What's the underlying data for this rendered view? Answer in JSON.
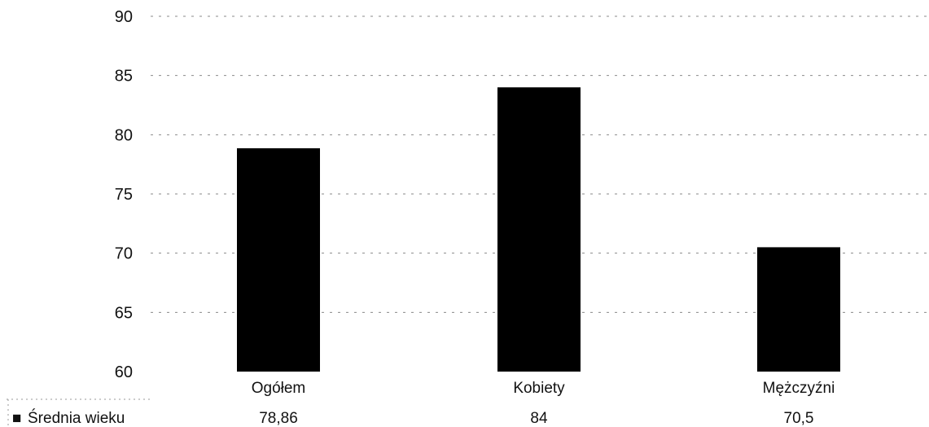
{
  "chart_data": {
    "type": "bar",
    "title": "",
    "xlabel": "",
    "ylabel": "",
    "categories": [
      "Ogółem",
      "Kobiety",
      "Mężczyźni"
    ],
    "series": [
      {
        "name": "Średnia wieku",
        "values": [
          78.86,
          84,
          70.5
        ],
        "value_labels": [
          "78,86",
          "84",
          "70,5"
        ],
        "color": "#000000"
      }
    ],
    "ylim": [
      60,
      90
    ],
    "yticks": [
      60,
      65,
      70,
      75,
      80,
      85,
      90
    ],
    "grid": true,
    "legend": "bottom-left data table",
    "legend_marker": "■"
  }
}
